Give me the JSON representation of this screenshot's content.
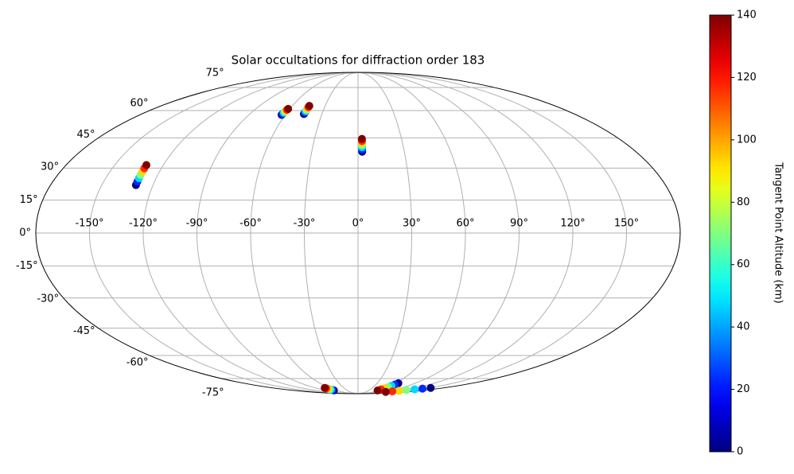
{
  "chart_data": {
    "type": "scatter",
    "projection": "mollweide",
    "title": "Solar occultations for diffraction order 183",
    "colorbar_label": "Tangent Point Altitude (km)",
    "colormap": "jet",
    "grid": true,
    "xlim": [
      -180,
      180
    ],
    "ylim": [
      -90,
      90
    ],
    "xticks": [
      {
        "value": -150,
        "label": "-150°"
      },
      {
        "value": -120,
        "label": "-120°"
      },
      {
        "value": -90,
        "label": "-90°"
      },
      {
        "value": -60,
        "label": "-60°"
      },
      {
        "value": -30,
        "label": "-30°"
      },
      {
        "value": 0,
        "label": "0°"
      },
      {
        "value": 30,
        "label": "30°"
      },
      {
        "value": 60,
        "label": "60°"
      },
      {
        "value": 90,
        "label": "90°"
      },
      {
        "value": 120,
        "label": "120°"
      },
      {
        "value": 150,
        "label": "150°"
      }
    ],
    "yticks": [
      {
        "value": -75,
        "label": "-75°"
      },
      {
        "value": -60,
        "label": "-60°"
      },
      {
        "value": -45,
        "label": "-45°"
      },
      {
        "value": -30,
        "label": "-30°"
      },
      {
        "value": -15,
        "label": "-15°"
      },
      {
        "value": 0,
        "label": "0°"
      },
      {
        "value": 15,
        "label": "15°"
      },
      {
        "value": 30,
        "label": "30°"
      },
      {
        "value": 45,
        "label": "45°"
      },
      {
        "value": 60,
        "label": "60°"
      },
      {
        "value": 75,
        "label": "75°"
      }
    ],
    "clim": [
      0,
      140
    ],
    "cticks": [
      0,
      20,
      40,
      60,
      80,
      100,
      120,
      140
    ],
    "x": [
      -130,
      -130.1,
      -130.2,
      -130.3,
      -130.3,
      -130.4,
      -130.5,
      -63,
      -62.8,
      -62.5,
      -62.3,
      -62,
      -61.8,
      -61.5,
      -45,
      -44.9,
      -44.8,
      -44.8,
      -44.7,
      -44.6,
      -44.5,
      2.7,
      2.7,
      2.7,
      2.7,
      2.7,
      2.7,
      2.7,
      -67,
      -67.5,
      -68,
      -68.5,
      -69,
      -69.5,
      -70,
      63.5,
      62.1,
      60.7,
      59.3,
      57.8,
      56.4,
      55,
      153,
      145,
      137,
      129,
      121,
      113,
      105
    ],
    "y": [
      22,
      23.6,
      25.2,
      26.8,
      28.3,
      29.9,
      31.5,
      57.5,
      58.1,
      58.7,
      59.3,
      59.8,
      60.4,
      61,
      58,
      58.8,
      59.6,
      60.4,
      61.2,
      62,
      62.8,
      38,
      39.1,
      40.2,
      41.3,
      42.3,
      43.4,
      44.5,
      -85.2,
      -84.8,
      -84.4,
      -84,
      -83.5,
      -83.1,
      -82.7,
      -78.6,
      -79.7,
      -80.8,
      -82,
      -83.1,
      -84.2,
      -85.3,
      -82.7,
      -83.4,
      -84.1,
      -84.9,
      -85.6,
      -86.3,
      -87
    ],
    "c": [
      0,
      23,
      47,
      70,
      93,
      117,
      140,
      0,
      23,
      47,
      70,
      93,
      117,
      140,
      0,
      23,
      47,
      70,
      93,
      117,
      140,
      0,
      23,
      47,
      70,
      93,
      117,
      140,
      0,
      23,
      47,
      70,
      93,
      117,
      140,
      0,
      23,
      47,
      70,
      93,
      117,
      140,
      0,
      23,
      47,
      70,
      93,
      117,
      140
    ]
  }
}
